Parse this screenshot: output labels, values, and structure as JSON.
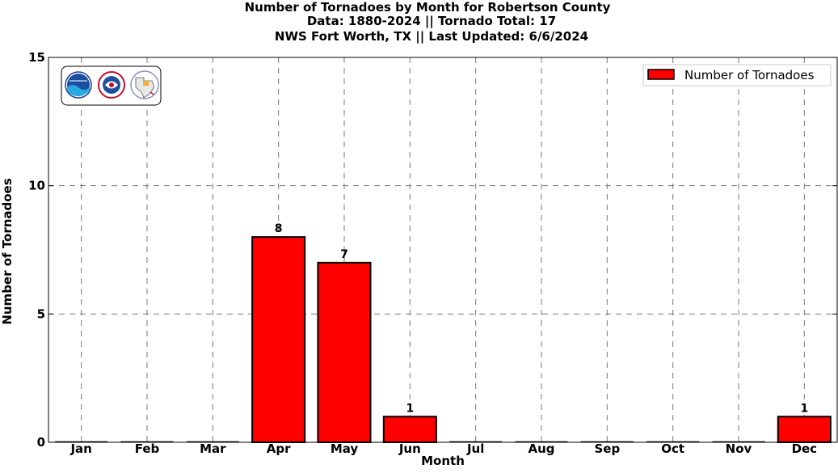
{
  "title_lines": [
    "Number of Tornadoes by Month for Robertson County",
    "Data: 1880-2024 || Tornado Total: 17",
    "NWS Fort Worth, TX || Last Updated: 6/6/2024"
  ],
  "colors": {
    "bar_fill": "#ff0000",
    "bar_stroke": "#000000",
    "grid": "#777777",
    "axes": "#000000"
  },
  "logos": [
    "noaa-logo",
    "nws-logo",
    "nws-fort-worth-texas-logo"
  ],
  "chart_data": {
    "type": "bar",
    "title": "Number of Tornadoes by Month for Robertson County",
    "subtitle": [
      "Data: 1880-2024 || Tornado Total: 17",
      "NWS Fort Worth, TX || Last Updated: 6/6/2024"
    ],
    "xlabel": "Month",
    "ylabel": "Number of Tornadoes",
    "categories": [
      "Jan",
      "Feb",
      "Mar",
      "Apr",
      "May",
      "Jun",
      "Jul",
      "Aug",
      "Sep",
      "Oct",
      "Nov",
      "Dec"
    ],
    "series": [
      {
        "name": "Number of Tornadoes",
        "values": [
          0,
          0,
          0,
          8,
          7,
          1,
          0,
          0,
          0,
          0,
          0,
          1
        ]
      }
    ],
    "data_labels": [
      "",
      "",
      "",
      "8",
      "7",
      "1",
      "",
      "",
      "",
      "",
      "",
      "1"
    ],
    "ylim": [
      0,
      15
    ],
    "yticks": [
      "0",
      "5",
      "10",
      "15"
    ],
    "grid": true,
    "grid_style": "dashed",
    "legend_position": "top-right"
  }
}
